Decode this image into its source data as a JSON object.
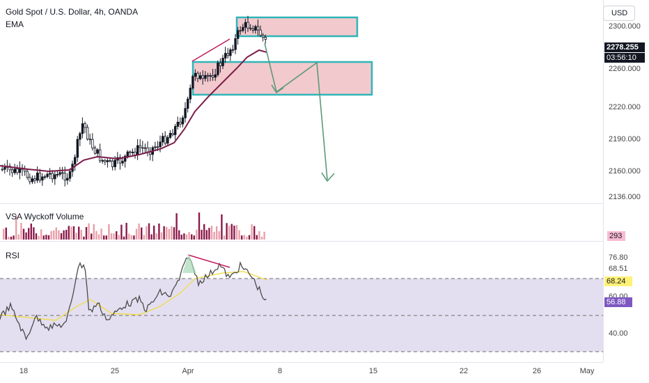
{
  "header": {
    "symbol_title": "Gold Spot / U.S. Dollar, 4h, OANDA",
    "indicator_ema": "EMA"
  },
  "currency_button": "USD",
  "price_axis": {
    "ticks": [
      "2300.000",
      "2260.000",
      "2220.000",
      "2190.000",
      "2160.000",
      "2136.000"
    ],
    "last_price": "2278.255",
    "countdown": "03:56:10"
  },
  "volume_pane": {
    "title": "VSA Wyckoff Volume",
    "value": "293"
  },
  "rsi_pane": {
    "title": "RSI",
    "ticks": [
      "76.80",
      "68.51",
      "60.00",
      "40.00"
    ],
    "ma_value": "68.24",
    "rsi_value": "56.88"
  },
  "time_axis": {
    "ticks": [
      "18",
      "25",
      "Apr",
      "8",
      "15",
      "22",
      "26",
      "May"
    ]
  },
  "colors": {
    "zone_fill": "#f2c9cd",
    "zone_border": "#2fb5b8",
    "arrow": "#5a9a78",
    "ema": "#7b1c4a",
    "candle": "#131722",
    "rsi_band": "#e3dff0",
    "rsi_line": "#4a4a4a",
    "rsi_ma": "#f0dc50",
    "divergence": "#c2185b",
    "volume_up": "#e8a0a8",
    "volume_down": "#8b1a4a",
    "badge_black": "#131722",
    "badge_ma": "#fff176",
    "badge_rsi": "#7e57c2",
    "badge_vol": "#f8bbd0"
  }
}
